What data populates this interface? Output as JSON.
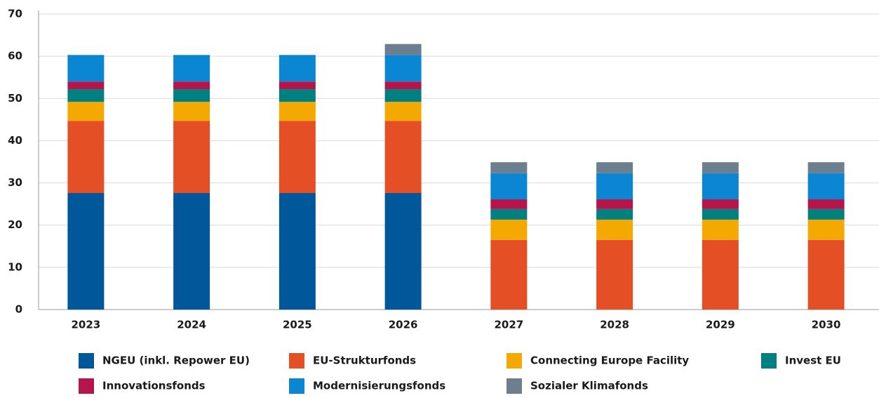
{
  "chart_data": {
    "type": "stacked_bar",
    "categories": [
      "2023",
      "2024",
      "2025",
      "2026",
      "2027",
      "2028",
      "2029",
      "2030"
    ],
    "series": [
      {
        "name": "NGEU (inkl. Repower EU)",
        "color": "#00589b",
        "values": [
          27.6,
          27.6,
          27.6,
          27.6,
          0,
          0,
          0,
          0
        ]
      },
      {
        "name": "EU-Strukturfonds",
        "color": "#e44f26",
        "values": [
          17.1,
          17.1,
          17.1,
          17.1,
          16.5,
          16.5,
          16.5,
          16.5
        ]
      },
      {
        "name": "Connecting Europe Facility",
        "color": "#f3a900",
        "values": [
          4.5,
          4.5,
          4.5,
          4.5,
          4.8,
          4.8,
          4.8,
          4.8
        ]
      },
      {
        "name": "Invest EU",
        "color": "#008081",
        "values": [
          3.0,
          3.0,
          3.0,
          3.0,
          2.5,
          2.5,
          2.5,
          2.5
        ]
      },
      {
        "name": "Innovationsfonds",
        "color": "#b5154b",
        "values": [
          1.8,
          1.8,
          1.8,
          1.8,
          2.3,
          2.3,
          2.3,
          2.3
        ]
      },
      {
        "name": "Modernisierungsfonds",
        "color": "#0a86d2",
        "values": [
          6.3,
          6.3,
          6.3,
          6.3,
          6.2,
          6.2,
          6.2,
          6.2
        ]
      },
      {
        "name": "Sozialer Klimafonds",
        "color": "#6d7f8f",
        "values": [
          0,
          0,
          0,
          2.6,
          2.6,
          2.6,
          2.6,
          2.6
        ]
      }
    ],
    "ylim": [
      0,
      70
    ],
    "yticks": [
      0,
      10,
      20,
      30,
      40,
      50,
      60,
      70
    ],
    "grid": true
  }
}
